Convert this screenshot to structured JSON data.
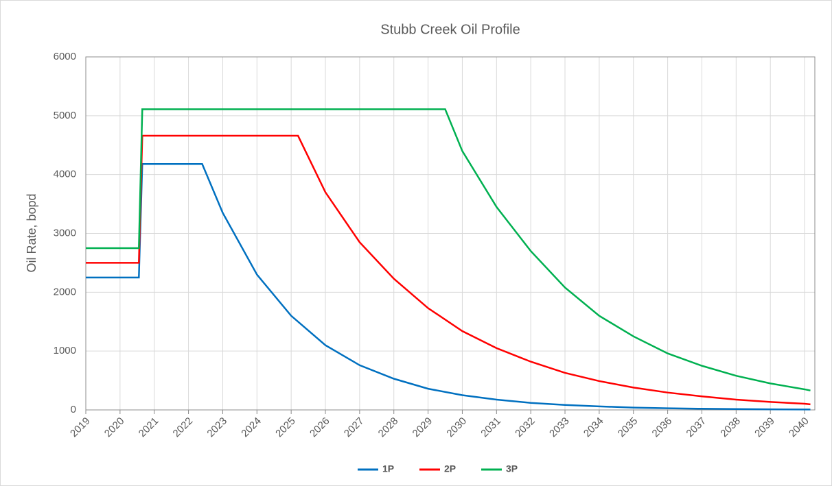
{
  "chart_data": {
    "type": "line",
    "title": "Stubb Creek Oil Profile",
    "y_label": "Oil Rate, bopd",
    "xlim": [
      2019,
      2040.3
    ],
    "xticks": [
      2019,
      2020,
      2021,
      2022,
      2023,
      2024,
      2025,
      2026,
      2027,
      2028,
      2029,
      2030,
      2031,
      2032,
      2033,
      2034,
      2035,
      2036,
      2037,
      2038,
      2039,
      2040
    ],
    "ylim": [
      0,
      6000
    ],
    "yticks": [
      0,
      1000,
      2000,
      3000,
      4000,
      5000,
      6000
    ],
    "grid": true,
    "legend": "bottom",
    "series": [
      {
        "name": "1P",
        "color": "#0070c0",
        "x": [
          2019,
          2020.55,
          2020.65,
          2022.4,
          2023,
          2024,
          2025,
          2026,
          2027,
          2028,
          2029,
          2030,
          2031,
          2032,
          2033,
          2034,
          2035,
          2036,
          2037,
          2038,
          2039,
          2040.17
        ],
        "values": [
          2250,
          2250,
          4180,
          4180,
          3350,
          2300,
          1600,
          1100,
          760,
          530,
          360,
          250,
          175,
          120,
          85,
          60,
          40,
          28,
          20,
          14,
          10,
          7
        ]
      },
      {
        "name": "2P",
        "color": "#ff0000",
        "x": [
          2019,
          2020.55,
          2020.65,
          2025.2,
          2026,
          2027,
          2028,
          2029,
          2030,
          2031,
          2032,
          2033,
          2034,
          2035,
          2036,
          2037,
          2038,
          2039,
          2040,
          2040.17
        ],
        "values": [
          2500,
          2500,
          4660,
          4660,
          3700,
          2850,
          2230,
          1730,
          1340,
          1050,
          820,
          630,
          490,
          380,
          295,
          230,
          175,
          135,
          105,
          95
        ]
      },
      {
        "name": "3P",
        "color": "#00b050",
        "x": [
          2019,
          2020.55,
          2020.65,
          2029.5,
          2030,
          2031,
          2032,
          2033,
          2034,
          2035,
          2036,
          2037,
          2038,
          2039,
          2040,
          2040.17
        ],
        "values": [
          2750,
          2750,
          5110,
          5110,
          4400,
          3450,
          2700,
          2080,
          1600,
          1250,
          960,
          750,
          580,
          450,
          350,
          330
        ]
      }
    ]
  }
}
